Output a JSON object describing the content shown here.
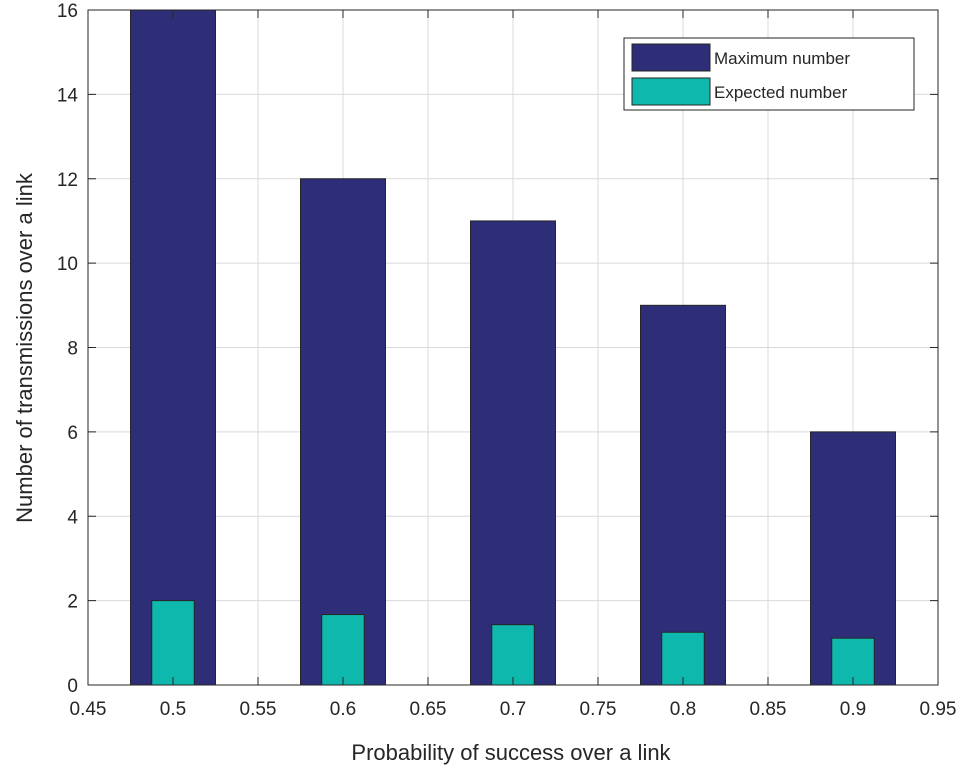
{
  "chart_data": {
    "type": "bar",
    "title": "",
    "xlabel": "Probability of success over a link",
    "ylabel": "Number of transmissions over a link",
    "x": [
      0.5,
      0.6,
      0.7,
      0.8,
      0.9
    ],
    "series": [
      {
        "name": "Maximum number",
        "color": "#2e2e78",
        "values": [
          16,
          12,
          11,
          9,
          6
        ]
      },
      {
        "name": "Expected number",
        "color": "#0fb8ac",
        "values": [
          2,
          1.67,
          1.43,
          1.25,
          1.11
        ]
      }
    ],
    "xlim": [
      0.45,
      0.95
    ],
    "ylim": [
      0,
      16
    ],
    "xticks": [
      "0.45",
      "0.5",
      "0.55",
      "0.6",
      "0.65",
      "0.7",
      "0.75",
      "0.8",
      "0.85",
      "0.9",
      "0.95"
    ],
    "yticks": [
      "0",
      "2",
      "4",
      "6",
      "8",
      "10",
      "12",
      "14",
      "16"
    ],
    "grid": true,
    "legend_position": "top-right",
    "grid_color": "#d9d9d9",
    "axis_color": "#262626"
  }
}
